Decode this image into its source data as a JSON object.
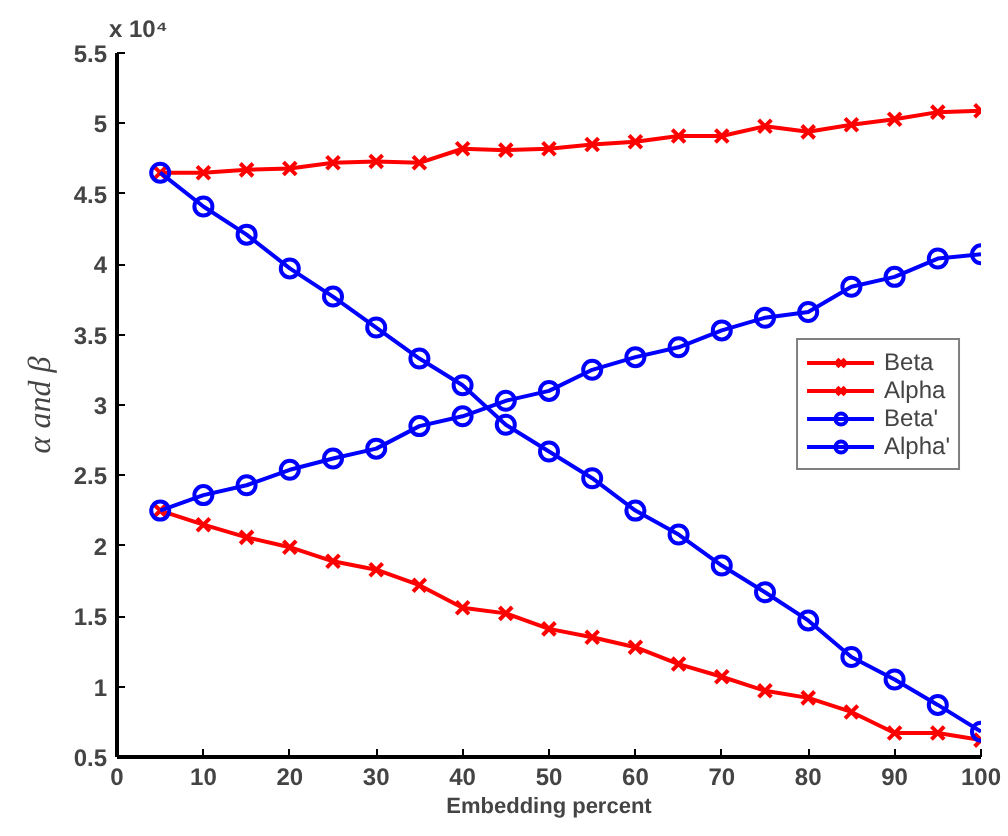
{
  "chart_data": {
    "type": "line",
    "xlabel": "Embedding percent",
    "ylabel": "α and β",
    "annotations": [
      "x 10⁴"
    ],
    "x": [
      5,
      10,
      15,
      20,
      25,
      30,
      35,
      40,
      45,
      50,
      55,
      60,
      65,
      70,
      75,
      80,
      85,
      90,
      95,
      100
    ],
    "xlim": [
      0,
      100
    ],
    "xticks": [
      0,
      10,
      20,
      30,
      40,
      50,
      60,
      70,
      80,
      90,
      100
    ],
    "ylim": [
      0.5,
      5.5
    ],
    "yticks": [
      0.5,
      1,
      1.5,
      2,
      2.5,
      3,
      3.5,
      4,
      4.5,
      5,
      5.5
    ],
    "grid": false,
    "legend": "right",
    "line_style": "solid",
    "series": [
      {
        "name": "Beta",
        "color": "#ff0000",
        "marker": "cross",
        "values": [
          4.65,
          4.65,
          4.67,
          4.68,
          4.72,
          4.73,
          4.72,
          4.82,
          4.81,
          4.82,
          4.85,
          4.87,
          4.91,
          4.91,
          4.98,
          4.94,
          4.99,
          5.03,
          5.08,
          5.09
        ]
      },
      {
        "name": "Alpha",
        "color": "#ff0000",
        "marker": "cross",
        "values": [
          2.25,
          2.15,
          2.06,
          1.99,
          1.89,
          1.83,
          1.72,
          1.56,
          1.52,
          1.41,
          1.35,
          1.28,
          1.16,
          1.07,
          0.97,
          0.92,
          0.82,
          0.67,
          0.67,
          0.62
        ]
      },
      {
        "name": "Beta'",
        "color": "#0000ff",
        "marker": "circle",
        "values": [
          4.65,
          4.41,
          4.21,
          3.97,
          3.77,
          3.55,
          3.33,
          3.14,
          2.86,
          2.67,
          2.48,
          2.25,
          2.08,
          1.86,
          1.67,
          1.47,
          1.21,
          1.05,
          0.87,
          0.68
        ]
      },
      {
        "name": "Alpha'",
        "color": "#0000ff",
        "marker": "circle",
        "values": [
          2.25,
          2.36,
          2.43,
          2.54,
          2.62,
          2.69,
          2.85,
          2.92,
          3.03,
          3.1,
          3.25,
          3.34,
          3.41,
          3.53,
          3.62,
          3.66,
          3.84,
          3.91,
          4.04,
          4.07
        ]
      }
    ]
  }
}
